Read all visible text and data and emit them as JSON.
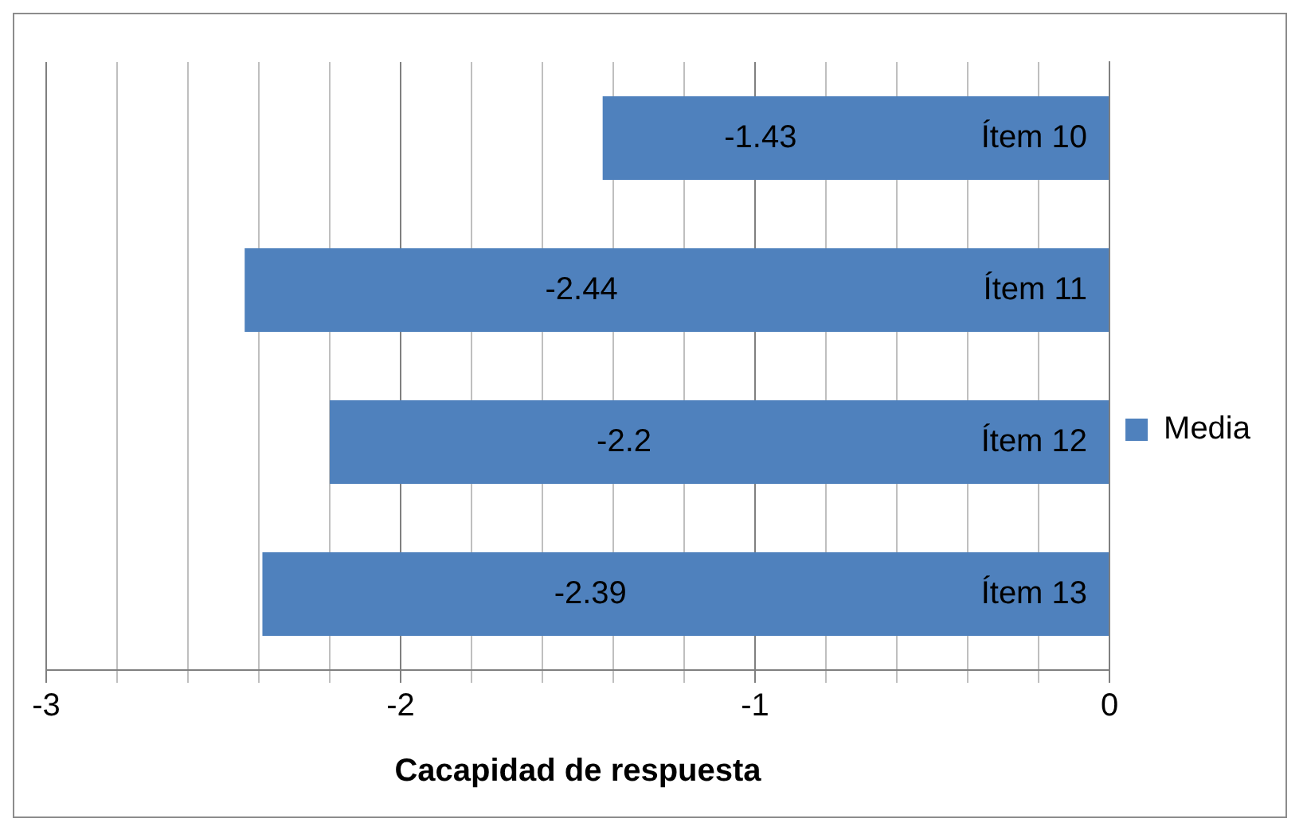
{
  "chart_data": {
    "type": "bar",
    "orientation": "horizontal",
    "xlabel": "Cacapidad de respuesta",
    "categories": [
      "Ítem 10",
      "Ítem 11",
      "Ítem 12",
      "Ítem 13"
    ],
    "series": [
      {
        "name": "Media",
        "color": "#4f81bd",
        "values": [
          -1.43,
          -2.44,
          -2.2,
          -2.39
        ]
      }
    ],
    "xlim": [
      -3,
      0
    ],
    "xticks": [
      -3,
      {
        "value": -2.8,
        "label": null
      },
      {
        "value": -2.6,
        "label": null
      },
      {
        "value": -2.4,
        "label": null
      },
      {
        "value": -2.2,
        "label": null
      },
      -2,
      {
        "value": -1.8,
        "label": null
      },
      {
        "value": -1.6,
        "label": null
      },
      {
        "value": -1.4,
        "label": null
      },
      {
        "value": -1.2,
        "label": null
      },
      -1,
      {
        "value": -0.8,
        "label": null
      },
      {
        "value": -0.6,
        "label": null
      },
      {
        "value": -0.4,
        "label": null
      },
      {
        "value": -0.2,
        "label": null
      },
      0
    ],
    "grid": "x",
    "legend": "right",
    "data_labels": true
  }
}
